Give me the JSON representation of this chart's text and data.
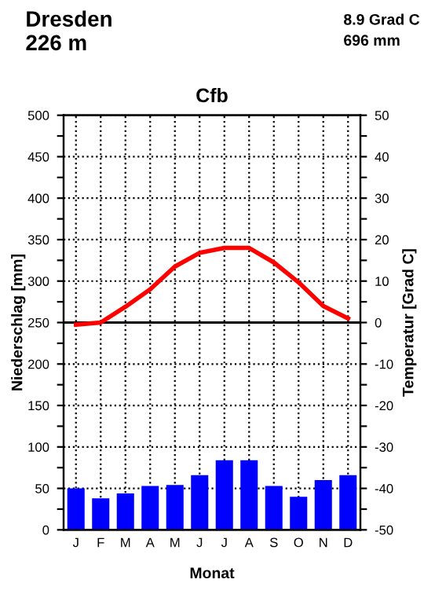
{
  "chart_data": {
    "type": "bar",
    "title": "Cfb",
    "xlabel": "Monat",
    "ylabel": "Niederschlag [mm]",
    "y2label": "Temperatur [Grad C]",
    "annotations": [
      "Dresden",
      "226 m",
      "8.9 Grad C",
      "696 mm"
    ],
    "categories": [
      "J",
      "F",
      "M",
      "A",
      "M",
      "J",
      "J",
      "A",
      "S",
      "O",
      "N",
      "D"
    ],
    "series": [
      {
        "color": "#0000ff",
        "values": [
          50,
          38,
          44,
          53,
          54,
          66,
          84,
          84,
          53,
          40,
          60,
          66
        ]
      },
      {
        "type": "line",
        "axis": "y2",
        "color": "#ff0000",
        "values": [
          -0.5,
          0,
          3.8,
          8,
          13.5,
          16.8,
          18,
          18,
          14.5,
          9.7,
          4,
          1
        ]
      }
    ],
    "ylim": [
      0,
      500
    ],
    "yticks": [
      0,
      {
        "value": 25,
        "label": null
      },
      50,
      {
        "value": 75,
        "label": null
      },
      100,
      {
        "value": 125,
        "label": null
      },
      150,
      {
        "value": 175,
        "label": null
      },
      200,
      {
        "value": 225,
        "label": null
      },
      250,
      {
        "value": 275,
        "label": null
      },
      300,
      {
        "value": 325,
        "label": null
      },
      350,
      {
        "value": 375,
        "label": null
      },
      400,
      {
        "value": 425,
        "label": null
      },
      450,
      {
        "value": 475,
        "label": null
      },
      500
    ],
    "y2lim": [
      -50,
      50
    ],
    "y2ticks": [
      -50,
      {
        "value": -45,
        "label": null
      },
      -40,
      {
        "value": -35,
        "label": null
      },
      -30,
      {
        "value": -25,
        "label": null
      },
      -20,
      {
        "value": -15,
        "label": null
      },
      -10,
      {
        "value": -5,
        "label": null
      },
      0,
      {
        "value": 5,
        "label": null
      },
      10,
      {
        "value": 15,
        "label": null
      },
      20,
      {
        "value": 25,
        "label": null
      },
      30,
      {
        "value": 35,
        "label": null
      },
      40,
      {
        "value": 45,
        "label": null
      },
      50
    ],
    "ref_lines": [
      {
        "axis": "y2",
        "value": 0,
        "color": "#000000",
        "line_style": "solid"
      }
    ],
    "grid": true,
    "marker": "none",
    "line_style": "solid"
  }
}
